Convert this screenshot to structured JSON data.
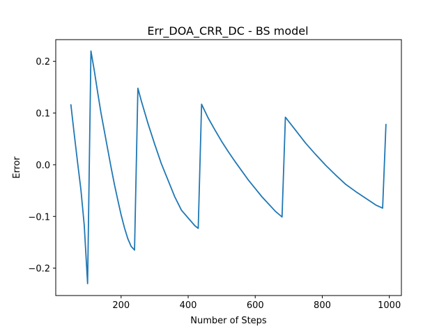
{
  "chart_data": {
    "type": "line",
    "title": "Err_DOA_CRR_DC - BS model",
    "xlabel": "Number of Steps",
    "ylabel": "Error",
    "xlim": [
      5,
      1036
    ],
    "ylim": [
      -0.253,
      0.242
    ],
    "xticks": [
      200,
      400,
      600,
      800,
      1000
    ],
    "yticks": [
      -0.2,
      -0.1,
      0.0,
      0.1,
      0.2
    ],
    "xtick_labels": [
      "200",
      "400",
      "600",
      "800",
      "1000"
    ],
    "ytick_labels": [
      "−0.2",
      "−0.1",
      "0.0",
      "0.1",
      "0.2"
    ],
    "grid": false,
    "legend": "none",
    "series": [
      {
        "color": "#1f77b4",
        "x": [
          50,
          60,
          70,
          80,
          90,
          100,
          110,
          120,
          130,
          140,
          150,
          160,
          170,
          180,
          190,
          200,
          210,
          220,
          230,
          240,
          250,
          260,
          280,
          300,
          320,
          340,
          360,
          380,
          400,
          420,
          430,
          440,
          460,
          480,
          500,
          520,
          540,
          560,
          580,
          600,
          620,
          640,
          660,
          680,
          690,
          720,
          750,
          780,
          810,
          840,
          870,
          900,
          930,
          960,
          980,
          990
        ],
        "y": [
          0.117,
          0.06,
          0.005,
          -0.048,
          -0.117,
          -0.23,
          0.22,
          0.182,
          0.14,
          0.1,
          0.065,
          0.03,
          -0.005,
          -0.038,
          -0.068,
          -0.097,
          -0.122,
          -0.143,
          -0.158,
          -0.165,
          0.148,
          0.124,
          0.08,
          0.04,
          0.002,
          -0.03,
          -0.062,
          -0.088,
          -0.103,
          -0.118,
          -0.123,
          0.117,
          0.09,
          0.067,
          0.045,
          0.025,
          0.006,
          -0.012,
          -0.03,
          -0.046,
          -0.062,
          -0.076,
          -0.09,
          -0.101,
          0.092,
          0.067,
          0.042,
          0.02,
          -0.001,
          -0.02,
          -0.038,
          -0.052,
          -0.065,
          -0.078,
          -0.084,
          0.079
        ]
      }
    ]
  }
}
